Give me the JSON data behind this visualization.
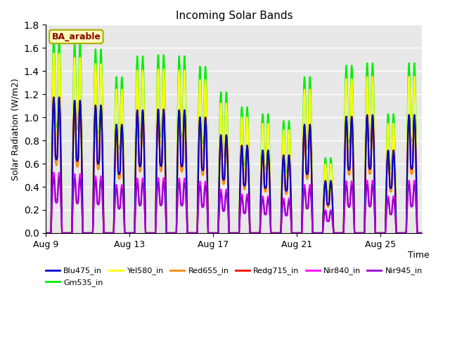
{
  "title": "Incoming Solar Bands",
  "xlabel": "Time",
  "ylabel": "Solar Radiation (W/m2)",
  "ylim": [
    0.0,
    1.8
  ],
  "annotation": "BA_arable",
  "legend_entries": [
    {
      "label": "Blu475_in",
      "color": "#0000cc"
    },
    {
      "label": "Gm535_in",
      "color": "#00ee00"
    },
    {
      "label": "Yel580_in",
      "color": "#ffff00"
    },
    {
      "label": "Red655_in",
      "color": "#ff8800"
    },
    {
      "label": "Redg715_in",
      "color": "#ff0000"
    },
    {
      "label": "Nir840_in",
      "color": "#ff00ff"
    },
    {
      "label": "Nir945_in",
      "color": "#9900cc"
    }
  ],
  "plot_bg_color": "#e8e8e8",
  "num_days": 18,
  "day_peak_grn": [
    1.69,
    1.65,
    1.59,
    1.35,
    1.53,
    1.54,
    1.53,
    1.44,
    1.22,
    1.09,
    1.03,
    0.97,
    1.35,
    0.65,
    1.45,
    1.47,
    1.03,
    1.47
  ],
  "band_scales": {
    "Blu475_in": 0.695,
    "Gm535_in": 1.0,
    "Yel580_in": 0.92,
    "Red655_in": 0.64,
    "Redg715_in": 0.695,
    "Nir840_in": 0.31,
    "Nir945_in": 0.285
  },
  "tick_days": [
    0,
    4,
    8,
    12,
    16
  ],
  "tick_labels": [
    "Aug 9",
    "Aug 13",
    "Aug 17",
    "Aug 21",
    "Aug 25"
  ],
  "linewidth": 1.5,
  "pts_per_day": 144
}
